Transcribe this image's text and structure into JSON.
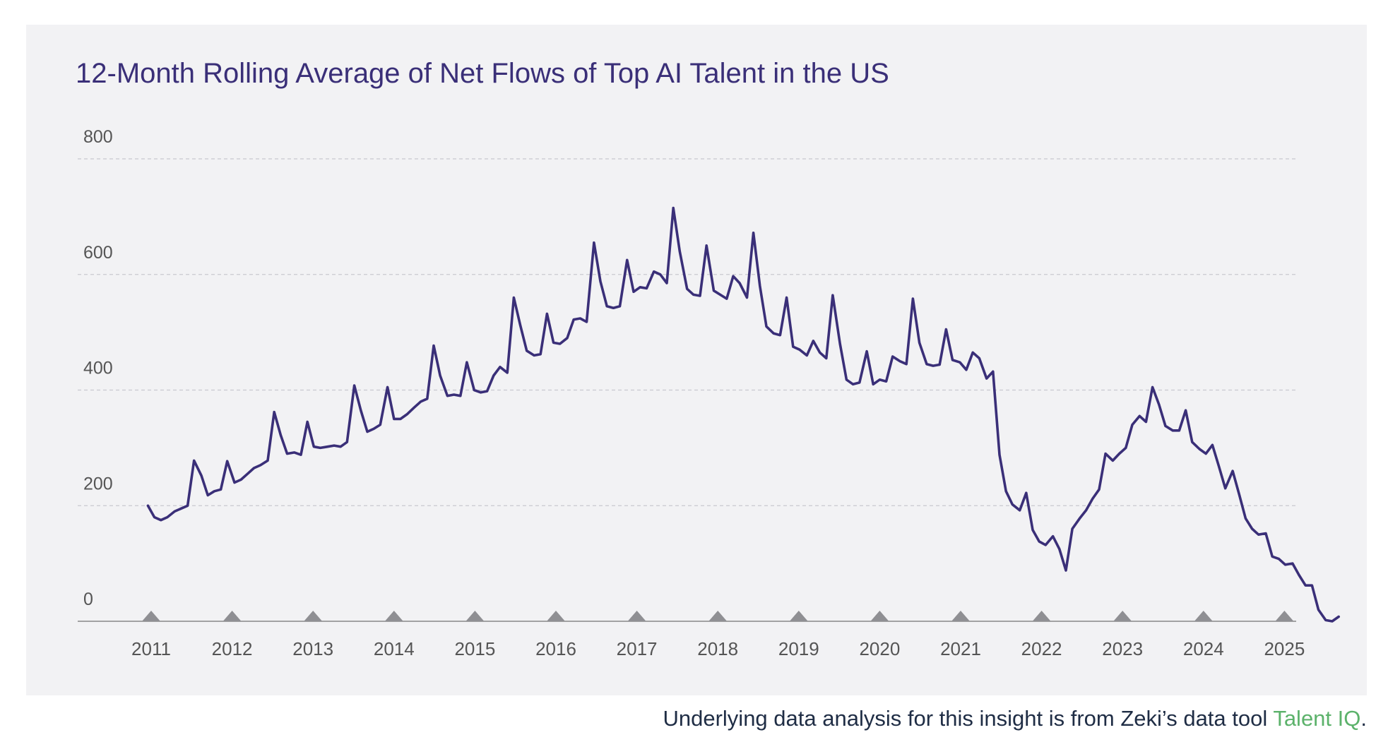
{
  "footer": {
    "prefix": "Underlying data analysis for this insight is from Zeki’s data tool ",
    "link": "Talent IQ",
    "suffix": "."
  },
  "colors": {
    "line": "#3a2f78",
    "grid": "#c9c9cf",
    "axis": "#888888",
    "marker": "#8f8f93",
    "tick_text": "#555555",
    "link": "#5cb26b"
  },
  "chart_data": {
    "type": "line",
    "title": "12-Month Rolling Average of Net Flows of Top AI Talent in the US",
    "xlabel": "",
    "ylabel": "",
    "xlim": [
      2010.2,
      2025.1
    ],
    "ylim": [
      0,
      800
    ],
    "yticks": [
      0,
      200,
      400,
      600,
      800
    ],
    "xticks": [
      2011,
      2012,
      2013,
      2014,
      2015,
      2016,
      2017,
      2018,
      2019,
      2020,
      2021,
      2022,
      2023,
      2024,
      2025
    ],
    "grid": "horizontal dashed",
    "year_markers": "triangles on x-axis at each year",
    "series": [
      {
        "values": [
          [
            2010.96,
            200
          ],
          [
            2011.04,
            180
          ],
          [
            2011.12,
            175
          ],
          [
            2011.2,
            180
          ],
          [
            2011.29,
            190
          ],
          [
            2011.37,
            195
          ],
          [
            2011.45,
            200
          ],
          [
            2011.53,
            278
          ],
          [
            2011.62,
            252
          ],
          [
            2011.7,
            218
          ],
          [
            2011.78,
            225
          ],
          [
            2011.86,
            228
          ],
          [
            2011.94,
            277
          ],
          [
            2012.03,
            240
          ],
          [
            2012.11,
            245
          ],
          [
            2012.19,
            255
          ],
          [
            2012.27,
            265
          ],
          [
            2012.35,
            270
          ],
          [
            2012.44,
            278
          ],
          [
            2012.52,
            362
          ],
          [
            2012.6,
            322
          ],
          [
            2012.68,
            290
          ],
          [
            2012.77,
            292
          ],
          [
            2012.85,
            288
          ],
          [
            2012.93,
            345
          ],
          [
            2013.01,
            302
          ],
          [
            2013.09,
            300
          ],
          [
            2013.18,
            302
          ],
          [
            2013.26,
            304
          ],
          [
            2013.34,
            302
          ],
          [
            2013.42,
            310
          ],
          [
            2013.51,
            408
          ],
          [
            2013.59,
            365
          ],
          [
            2013.67,
            328
          ],
          [
            2013.75,
            333
          ],
          [
            2013.83,
            340
          ],
          [
            2013.92,
            405
          ],
          [
            2014.0,
            350
          ],
          [
            2014.08,
            350
          ],
          [
            2014.16,
            358
          ],
          [
            2014.25,
            370
          ],
          [
            2014.33,
            380
          ],
          [
            2014.41,
            385
          ],
          [
            2014.49,
            477
          ],
          [
            2014.57,
            425
          ],
          [
            2014.66,
            390
          ],
          [
            2014.74,
            392
          ],
          [
            2014.82,
            390
          ],
          [
            2014.9,
            448
          ],
          [
            2014.99,
            400
          ],
          [
            2015.07,
            396
          ],
          [
            2015.15,
            398
          ],
          [
            2015.23,
            425
          ],
          [
            2015.31,
            440
          ],
          [
            2015.4,
            430
          ],
          [
            2015.48,
            560
          ],
          [
            2015.56,
            512
          ],
          [
            2015.64,
            468
          ],
          [
            2015.73,
            460
          ],
          [
            2015.81,
            462
          ],
          [
            2015.89,
            532
          ],
          [
            2015.97,
            482
          ],
          [
            2016.05,
            480
          ],
          [
            2016.14,
            490
          ],
          [
            2016.22,
            522
          ],
          [
            2016.3,
            524
          ],
          [
            2016.38,
            518
          ],
          [
            2016.47,
            655
          ],
          [
            2016.55,
            588
          ],
          [
            2016.63,
            545
          ],
          [
            2016.71,
            542
          ],
          [
            2016.79,
            545
          ],
          [
            2016.88,
            625
          ],
          [
            2016.96,
            570
          ],
          [
            2017.04,
            578
          ],
          [
            2017.12,
            576
          ],
          [
            2017.21,
            605
          ],
          [
            2017.29,
            600
          ],
          [
            2017.37,
            585
          ],
          [
            2017.45,
            715
          ],
          [
            2017.53,
            640
          ],
          [
            2017.62,
            575
          ],
          [
            2017.7,
            565
          ],
          [
            2017.78,
            563
          ],
          [
            2017.86,
            650
          ],
          [
            2017.95,
            572
          ],
          [
            2018.03,
            565
          ],
          [
            2018.11,
            558
          ],
          [
            2018.19,
            597
          ],
          [
            2018.27,
            585
          ],
          [
            2018.36,
            560
          ],
          [
            2018.44,
            672
          ],
          [
            2018.52,
            580
          ],
          [
            2018.6,
            510
          ],
          [
            2018.69,
            498
          ],
          [
            2018.77,
            495
          ],
          [
            2018.85,
            560
          ],
          [
            2018.93,
            475
          ],
          [
            2019.01,
            470
          ],
          [
            2019.1,
            460
          ],
          [
            2019.18,
            485
          ],
          [
            2019.26,
            465
          ],
          [
            2019.34,
            455
          ],
          [
            2019.42,
            564
          ],
          [
            2019.51,
            480
          ],
          [
            2019.59,
            418
          ],
          [
            2019.67,
            410
          ],
          [
            2019.75,
            413
          ],
          [
            2019.84,
            467
          ],
          [
            2019.92,
            410
          ],
          [
            2020.0,
            418
          ],
          [
            2020.08,
            415
          ],
          [
            2020.16,
            458
          ],
          [
            2020.25,
            450
          ],
          [
            2020.33,
            445
          ],
          [
            2020.41,
            558
          ],
          [
            2020.49,
            482
          ],
          [
            2020.58,
            445
          ],
          [
            2020.66,
            442
          ],
          [
            2020.74,
            444
          ],
          [
            2020.82,
            505
          ],
          [
            2020.9,
            452
          ],
          [
            2020.99,
            448
          ],
          [
            2021.07,
            435
          ],
          [
            2021.15,
            465
          ],
          [
            2021.23,
            455
          ],
          [
            2021.32,
            420
          ],
          [
            2021.4,
            432
          ],
          [
            2021.48,
            288
          ],
          [
            2021.56,
            225
          ],
          [
            2021.64,
            202
          ],
          [
            2021.73,
            192
          ],
          [
            2021.81,
            222
          ],
          [
            2021.89,
            158
          ],
          [
            2021.97,
            138
          ],
          [
            2022.05,
            132
          ],
          [
            2022.14,
            147
          ],
          [
            2022.22,
            125
          ],
          [
            2022.3,
            88
          ],
          [
            2022.38,
            160
          ],
          [
            2022.47,
            178
          ],
          [
            2022.55,
            192
          ],
          [
            2022.63,
            212
          ],
          [
            2022.71,
            228
          ],
          [
            2022.79,
            290
          ],
          [
            2022.88,
            278
          ],
          [
            2022.96,
            290
          ],
          [
            2023.04,
            300
          ],
          [
            2023.12,
            340
          ],
          [
            2023.21,
            355
          ],
          [
            2023.29,
            345
          ],
          [
            2023.37,
            405
          ],
          [
            2023.45,
            375
          ],
          [
            2023.53,
            338
          ],
          [
            2023.62,
            330
          ],
          [
            2023.7,
            330
          ],
          [
            2023.78,
            365
          ],
          [
            2023.86,
            310
          ],
          [
            2023.95,
            298
          ],
          [
            2024.03,
            290
          ],
          [
            2024.11,
            305
          ],
          [
            2024.19,
            268
          ],
          [
            2024.27,
            230
          ],
          [
            2024.36,
            260
          ],
          [
            2024.44,
            220
          ],
          [
            2024.52,
            178
          ],
          [
            2024.6,
            160
          ],
          [
            2024.68,
            150
          ],
          [
            2024.77,
            152
          ],
          [
            2024.85,
            112
          ],
          [
            2024.93,
            108
          ],
          [
            2025.01,
            98
          ],
          [
            2025.1,
            100
          ],
          [
            2025.18,
            80
          ],
          [
            2025.26,
            62
          ],
          [
            2025.34,
            62
          ],
          [
            2025.42,
            20
          ],
          [
            2025.51,
            2
          ],
          [
            2025.59,
            0
          ],
          [
            2025.67,
            8
          ]
        ]
      }
    ]
  }
}
